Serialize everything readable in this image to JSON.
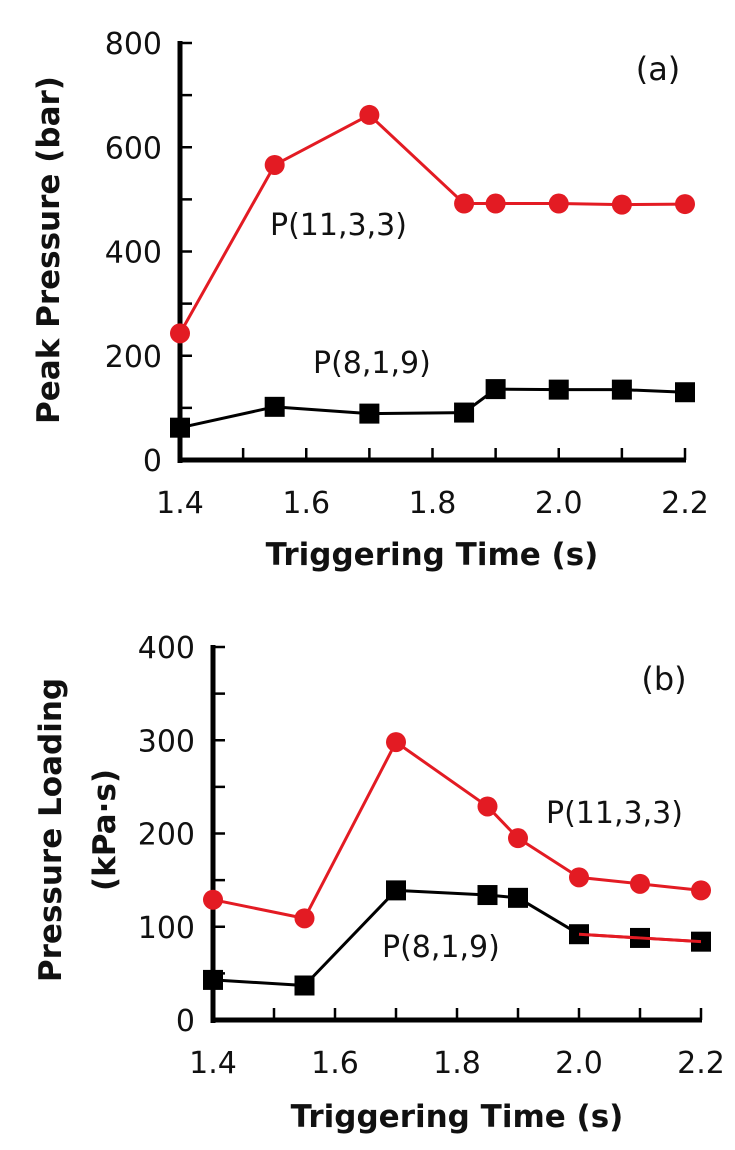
{
  "chart_data": [
    {
      "type": "line",
      "panel_label": "(a)",
      "title": "",
      "xlabel": "Triggering Time (s)",
      "ylabel": "Peak Pressure (bar)",
      "xlim": [
        1.4,
        2.2
      ],
      "ylim": [
        0,
        800
      ],
      "xticks": [
        1.4,
        1.5,
        1.6,
        1.7,
        1.8,
        1.9,
        2.0,
        2.1,
        2.2
      ],
      "xtick_labels": [
        "1.4",
        "1.6",
        "1.8",
        "2.0",
        "2.2"
      ],
      "xtick_label_values": [
        1.4,
        1.6,
        1.8,
        2.0,
        2.2
      ],
      "yticks": [
        0,
        100,
        200,
        300,
        400,
        500,
        600,
        700,
        800
      ],
      "ytick_labels": [
        "0",
        "200",
        "400",
        "600",
        "800"
      ],
      "ytick_label_values": [
        0,
        200,
        400,
        600,
        800
      ],
      "grid": false,
      "series": [
        {
          "name": "P(11,3,3)",
          "color": "#e31b23",
          "marker": "circle",
          "x": [
            1.4,
            1.55,
            1.7,
            1.85,
            1.9,
            2.0,
            2.1,
            2.2
          ],
          "values": [
            243,
            566,
            662,
            492,
            492,
            492,
            490,
            491
          ]
        },
        {
          "name": "P(8,1,9)",
          "color": "#000000",
          "marker": "square",
          "x": [
            1.4,
            1.55,
            1.7,
            1.85,
            1.9,
            2.0,
            2.1,
            2.2
          ],
          "values": [
            62,
            102,
            89,
            91,
            136,
            135,
            135,
            130
          ]
        }
      ],
      "annotations": [
        {
          "text": "P(11,3,3)",
          "x": 1.535,
          "y": 432
        },
        {
          "text": "P(8,1,9)",
          "x": 1.605,
          "y": 168
        }
      ]
    },
    {
      "type": "line",
      "panel_label": "(b)",
      "title": "",
      "xlabel": "Triggering Time (s)",
      "ylabel": "Pressure Loading",
      "ylabel_line2": "(kPa·s)",
      "xlim": [
        1.4,
        2.2
      ],
      "ylim": [
        0,
        400
      ],
      "xticks": [
        1.4,
        1.5,
        1.6,
        1.7,
        1.8,
        1.9,
        2.0,
        2.1,
        2.2
      ],
      "xtick_labels": [
        "1.4",
        "1.6",
        "1.8",
        "2.0",
        "2.2"
      ],
      "xtick_label_values": [
        1.4,
        1.6,
        1.8,
        2.0,
        2.2
      ],
      "yticks": [
        0,
        50,
        100,
        150,
        200,
        250,
        300,
        350,
        400
      ],
      "ytick_labels": [
        "0",
        "100",
        "200",
        "300",
        "400"
      ],
      "ytick_label_values": [
        0,
        100,
        200,
        300,
        400
      ],
      "grid": false,
      "series": [
        {
          "name": "P(11,3,3)",
          "color": "#e31b23",
          "marker": "circle",
          "x": [
            1.4,
            1.55,
            1.7,
            1.85,
            1.9,
            2.0,
            2.1,
            2.2
          ],
          "values": [
            129,
            109,
            298,
            229,
            195,
            153,
            146,
            139
          ]
        },
        {
          "name": "P(8,1,9)",
          "color": "#000000",
          "marker": "square",
          "x": [
            1.4,
            1.55,
            1.7,
            1.85,
            1.9,
            2.0,
            2.1,
            2.2
          ],
          "values": [
            43,
            37,
            139,
            134,
            131,
            92,
            88,
            84
          ],
          "segment_colors": [
            "#000000",
            "#000000",
            "#000000",
            "#000000",
            "#000000",
            "#e31b23",
            "#e31b23"
          ]
        }
      ],
      "annotations": [
        {
          "text": "P(11,3,3)",
          "x": 1.94,
          "y": 212
        },
        {
          "text": "P(8,1,9)",
          "x": 1.68,
          "y": 67
        }
      ]
    }
  ]
}
